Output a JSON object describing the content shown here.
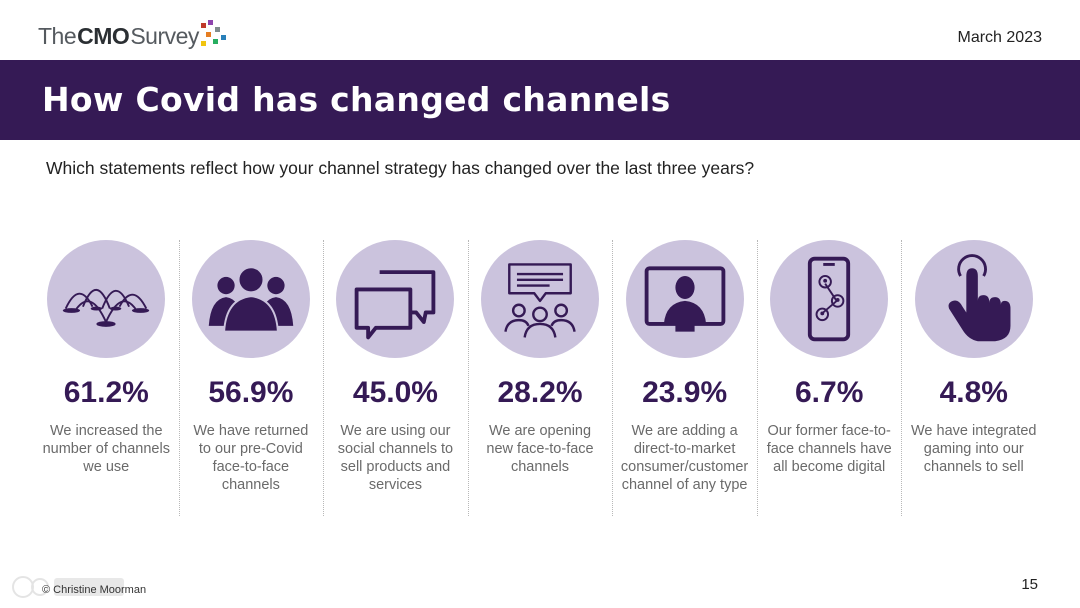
{
  "header": {
    "logo": {
      "the": "The",
      "cmo": "CMO",
      "survey": "Survey"
    },
    "date": "March 2023",
    "title": "How Covid has changed channels"
  },
  "question": "Which statements reflect how your channel strategy has changed over the last three years?",
  "colors": {
    "band": "#351a55",
    "circle": "#cbc3dd",
    "icon": "#351a55",
    "percent": "#351a55"
  },
  "items": [
    {
      "icon": "fountain-icon",
      "percent": "61.2%",
      "text": "We increased the number of channels we use"
    },
    {
      "icon": "people-group-icon",
      "percent": "56.9%",
      "text": "We have returned to our pre-Covid face-to-face channels"
    },
    {
      "icon": "chat-bubbles-icon",
      "percent": "45.0%",
      "text": "We are using our social channels to sell products and services"
    },
    {
      "icon": "meeting-icon",
      "percent": "28.2%",
      "text": "We are opening new face-to-face channels"
    },
    {
      "icon": "video-monitor-icon",
      "percent": "23.9%",
      "text": "We are adding a direct-to-market consumer/customer channel of any type"
    },
    {
      "icon": "phone-network-icon",
      "percent": "6.7%",
      "text": "Our former face-to-face channels have all become digital"
    },
    {
      "icon": "pointing-hand-icon",
      "percent": "4.8%",
      "text": "We have integrated gaming into our channels to sell"
    }
  ],
  "footer": {
    "copyright": "© Christine Moorman",
    "page": "15"
  }
}
